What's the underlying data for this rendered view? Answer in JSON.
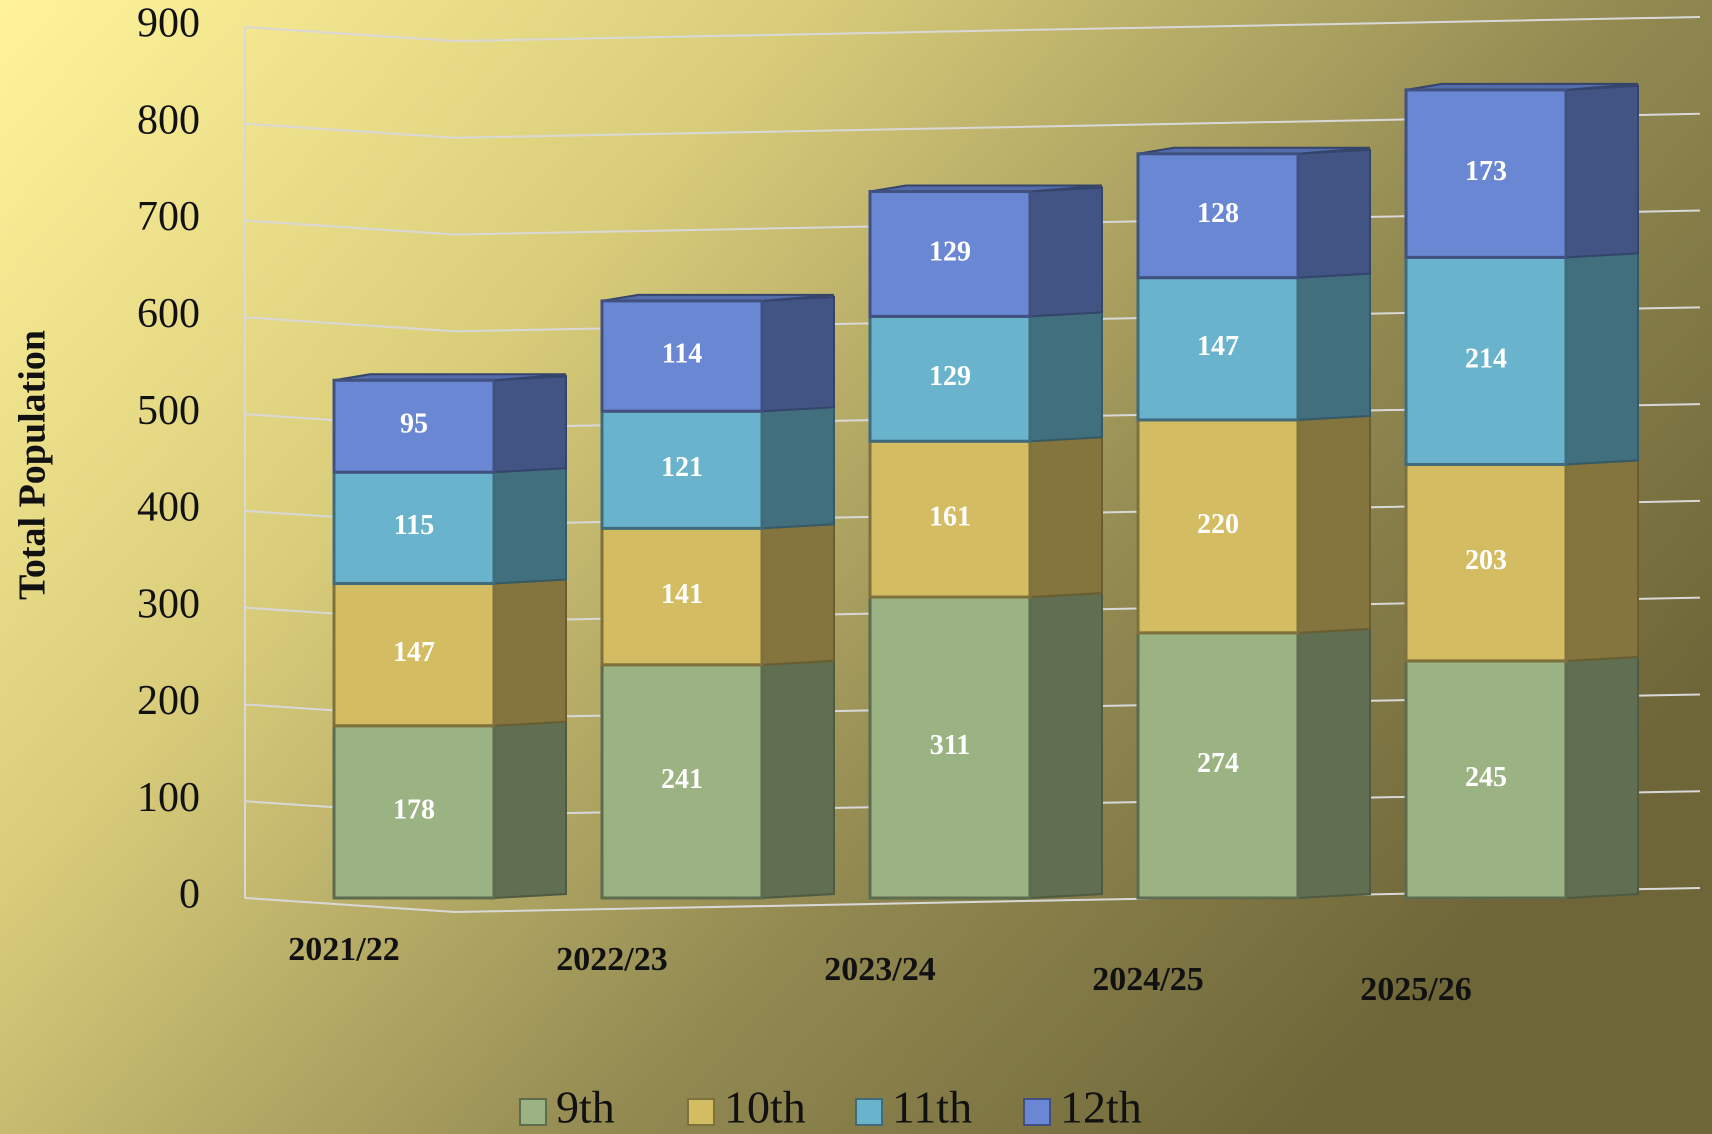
{
  "chart_data": {
    "type": "bar3d_stacked",
    "y_label": "Total Population",
    "categories": [
      "2021/22",
      "2022/23",
      "2023/24",
      "2024/25",
      "2025/26"
    ],
    "series": [
      {
        "name": "9th",
        "color": "#9bb382",
        "values": [
          178,
          241,
          311,
          274,
          245
        ]
      },
      {
        "name": "10th",
        "color": "#d4bc62",
        "values": [
          147,
          141,
          161,
          220,
          203
        ]
      },
      {
        "name": "11th",
        "color": "#6ab3cc",
        "values": [
          115,
          121,
          129,
          147,
          214
        ]
      },
      {
        "name": "12th",
        "color": "#6a87d4",
        "values": [
          95,
          114,
          129,
          128,
          173
        ]
      }
    ],
    "ylim": [
      0,
      900
    ],
    "yticks": [
      0,
      100,
      200,
      300,
      400,
      500,
      600,
      700,
      800,
      900
    ],
    "grid": true,
    "legend": "bottom"
  }
}
